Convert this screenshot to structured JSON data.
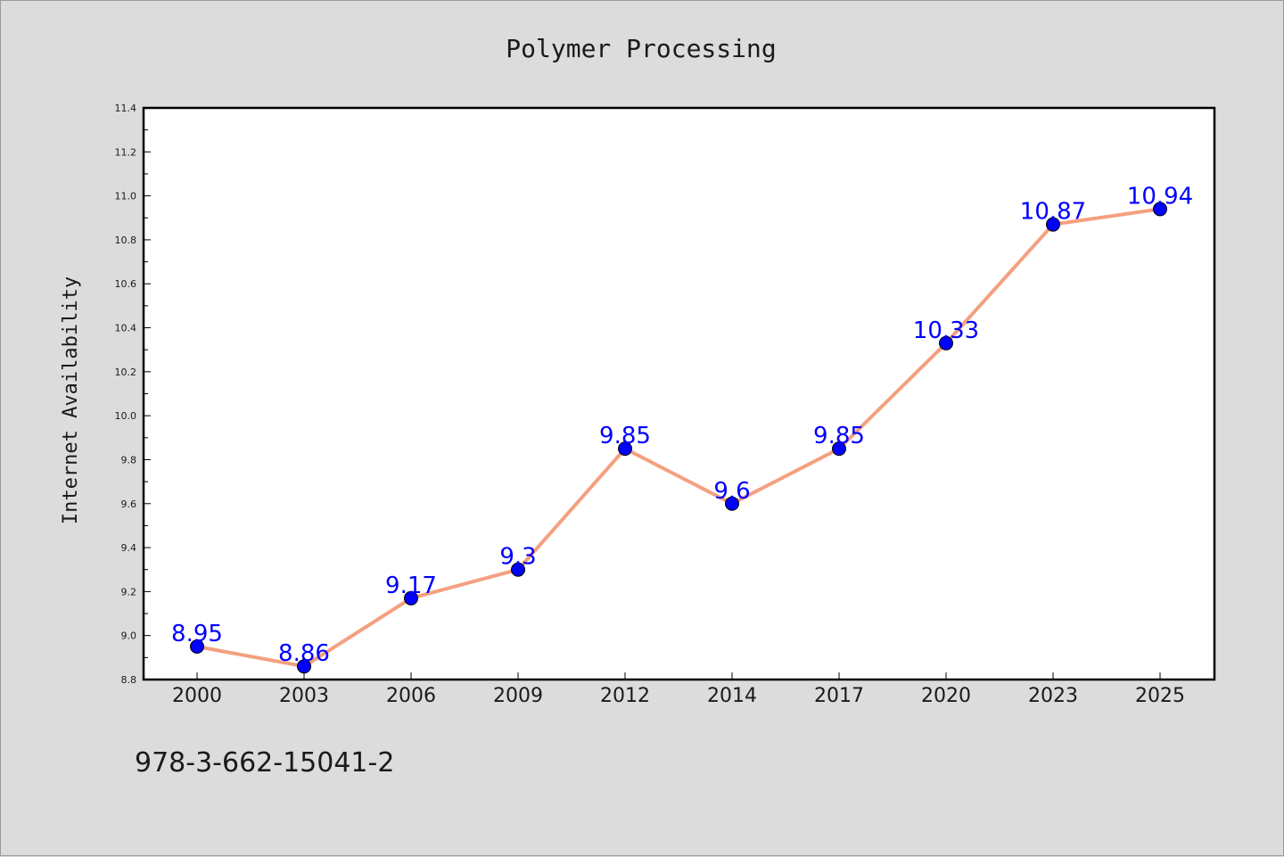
{
  "chart_data": {
    "type": "line",
    "title": "Polymer Processing",
    "xlabel": "",
    "ylabel": "Internet Availability",
    "categories": [
      "2000",
      "2003",
      "2006",
      "2009",
      "2012",
      "2014",
      "2017",
      "2020",
      "2023",
      "2025"
    ],
    "series": [
      {
        "values": [
          8.95,
          8.86,
          9.17,
          9.3,
          9.85,
          9.6,
          9.85,
          10.33,
          10.87,
          10.94
        ],
        "labels": [
          "8.95",
          "8.86",
          "9.17",
          "9.3",
          "9.85",
          "9.6",
          "9.85",
          "10.33",
          "10.87",
          "10.94"
        ],
        "line_color": "#f4a080",
        "marker_color": "#0000ff"
      }
    ],
    "ylim": [
      8.8,
      11.4
    ],
    "yticks": [
      "8.8",
      "9.0",
      "9.2",
      "9.4",
      "9.6",
      "9.8",
      "10.0",
      "10.2",
      "10.4",
      "10.6",
      "10.8",
      "11.0",
      "11.2",
      "11.4"
    ],
    "grid": false,
    "legend": "none"
  },
  "footer_text": "978-3-662-15041-2",
  "colors": {
    "background": "#dcdcdc",
    "plot_background": "#ffffff",
    "data_label": "#0000ff"
  }
}
